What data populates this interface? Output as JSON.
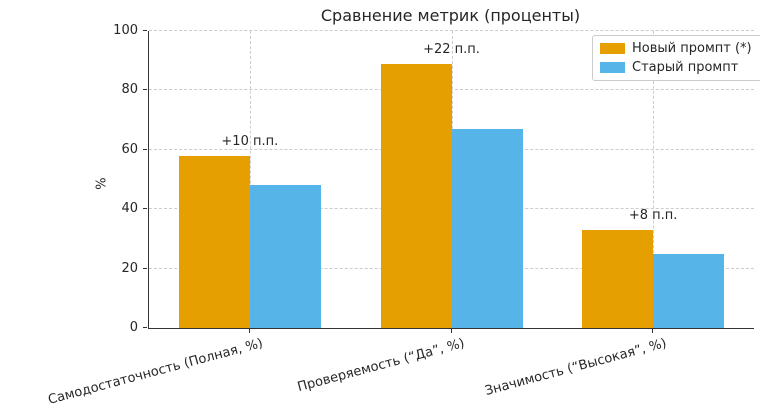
{
  "chart_data": {
    "type": "bar",
    "title": "Сравнение метрик (проценты)",
    "ylabel": "%",
    "xlabel": "",
    "categories": [
      "Самодостаточность (Полная, %)",
      "Проверяемость (“Да”, %)",
      "Значимость (“Высокая”, %)"
    ],
    "series": [
      {
        "name": "Новый промпт (*)",
        "color": "#E69F00",
        "values": [
          58,
          89,
          33
        ]
      },
      {
        "name": "Старый промпт",
        "color": "#56B4E9",
        "values": [
          48,
          67,
          25
        ]
      }
    ],
    "annotations": [
      {
        "text": "+10 п.п.",
        "category_index": 0
      },
      {
        "text": "+22 п.п.",
        "category_index": 1
      },
      {
        "text": "+8 п.п.",
        "category_index": 2
      }
    ],
    "ylim": [
      0,
      100
    ],
    "yticks": [
      0,
      20,
      40,
      60,
      80,
      100
    ],
    "grid": true,
    "legend_position": "upper-right"
  },
  "colors": {
    "grid": "#cccccc",
    "spine": "#333333",
    "text": "#262626",
    "legend_border": "#cccccc",
    "background": "#ffffff"
  }
}
